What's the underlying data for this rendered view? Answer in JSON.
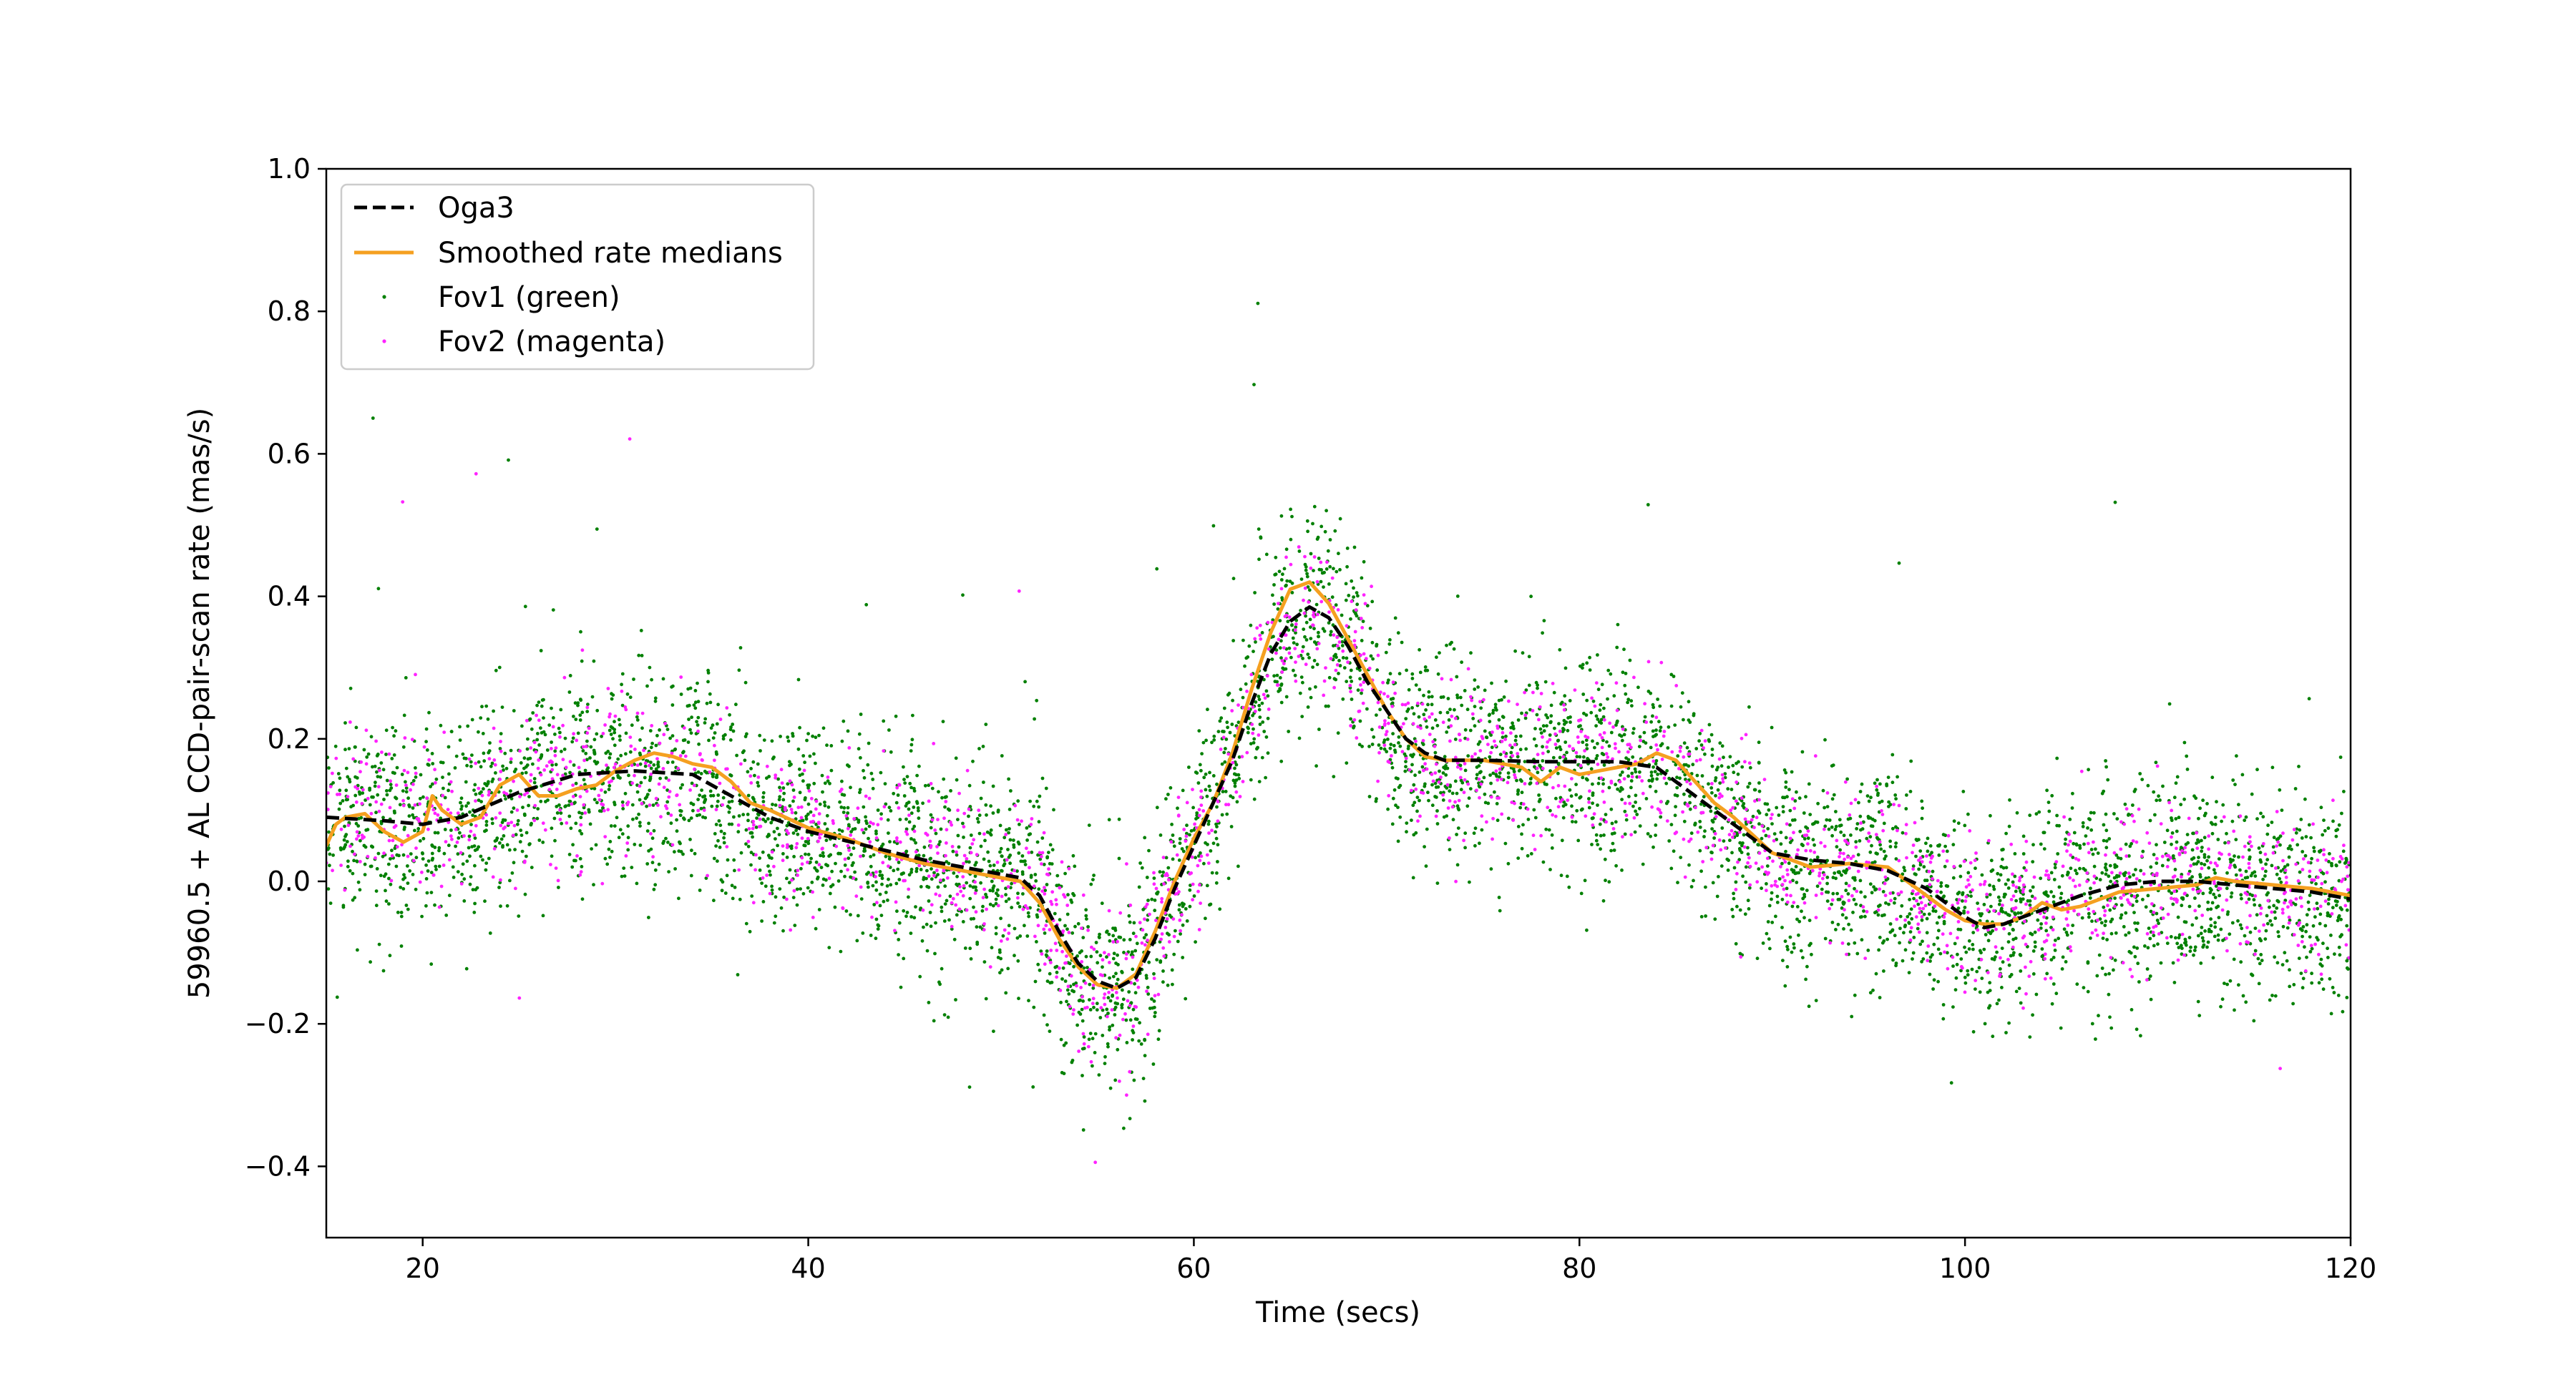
{
  "chart_data": {
    "type": "scatter",
    "title": "",
    "xlabel": "Time (secs)",
    "ylabel": "59960.5 + AL CCD-pair-scan rate (mas/s)",
    "xlim": [
      15,
      120
    ],
    "ylim": [
      -0.5,
      1.0
    ],
    "xticks": [
      20,
      40,
      60,
      80,
      100,
      120
    ],
    "yticks": [
      -0.4,
      -0.2,
      0.0,
      0.2,
      0.4,
      0.6,
      0.8,
      1.0
    ],
    "xtick_labels": [
      "20",
      "40",
      "60",
      "80",
      "100",
      "120"
    ],
    "ytick_labels": [
      "−0.4",
      "−0.2",
      "0.0",
      "0.2",
      "0.4",
      "0.6",
      "0.8",
      "1.0"
    ],
    "grid": false,
    "legend_position": "top-left",
    "series": [
      {
        "name": "Oga3",
        "kind": "line",
        "style": "dashed",
        "color": "#000000",
        "x": [
          15,
          18,
          20,
          22,
          25,
          28,
          31,
          34,
          36,
          38,
          40,
          43,
          46,
          49,
          51,
          52,
          53,
          54,
          55,
          56,
          57,
          58,
          59,
          60,
          61,
          62,
          63,
          64,
          65,
          66,
          67,
          68,
          69,
          70,
          71,
          72,
          73,
          75,
          78,
          80,
          82,
          84,
          85,
          86,
          87,
          88,
          89,
          90,
          92,
          94,
          96,
          98,
          100,
          101,
          102,
          104,
          106,
          108,
          110,
          112,
          114,
          116,
          118,
          120
        ],
        "y": [
          0.09,
          0.085,
          0.08,
          0.09,
          0.125,
          0.15,
          0.155,
          0.15,
          0.12,
          0.09,
          0.07,
          0.05,
          0.03,
          0.015,
          0.005,
          -0.02,
          -0.07,
          -0.115,
          -0.14,
          -0.15,
          -0.135,
          -0.08,
          -0.01,
          0.05,
          0.11,
          0.17,
          0.25,
          0.32,
          0.365,
          0.385,
          0.37,
          0.33,
          0.28,
          0.24,
          0.2,
          0.18,
          0.17,
          0.17,
          0.168,
          0.168,
          0.168,
          0.16,
          0.14,
          0.12,
          0.1,
          0.08,
          0.06,
          0.04,
          0.03,
          0.025,
          0.015,
          -0.01,
          -0.05,
          -0.065,
          -0.06,
          -0.04,
          -0.02,
          -0.005,
          0.0,
          0.0,
          -0.005,
          -0.01,
          -0.015,
          -0.025
        ]
      },
      {
        "name": "Smoothed rate medians",
        "kind": "line",
        "style": "solid",
        "color": "#f5a020",
        "x": [
          15,
          15.5,
          16,
          17,
          18,
          19,
          20,
          20.5,
          21,
          22,
          23,
          24,
          25,
          26,
          27,
          28,
          29,
          30,
          31,
          32,
          33,
          34,
          35,
          36,
          37,
          38,
          40,
          42,
          44,
          46,
          48,
          50,
          51,
          52,
          53,
          54,
          55,
          56,
          57,
          58,
          59,
          60,
          61,
          62,
          63,
          64,
          65,
          66,
          67,
          68,
          69,
          70,
          71,
          72,
          73,
          75,
          77,
          78,
          79,
          80,
          81,
          82,
          83,
          84,
          85,
          86,
          87,
          88,
          89,
          90,
          92,
          94,
          96,
          98,
          99,
          100,
          101,
          102,
          103,
          104,
          105,
          106,
          108,
          110,
          112,
          113,
          114,
          116,
          118,
          120
        ],
        "y": [
          0.05,
          0.08,
          0.09,
          0.095,
          0.07,
          0.055,
          0.07,
          0.12,
          0.1,
          0.08,
          0.09,
          0.135,
          0.15,
          0.12,
          0.12,
          0.13,
          0.135,
          0.155,
          0.17,
          0.18,
          0.175,
          0.165,
          0.16,
          0.14,
          0.11,
          0.1,
          0.075,
          0.06,
          0.04,
          0.025,
          0.015,
          0.005,
          0.0,
          -0.03,
          -0.08,
          -0.12,
          -0.145,
          -0.15,
          -0.13,
          -0.07,
          0.0,
          0.06,
          0.11,
          0.18,
          0.27,
          0.35,
          0.41,
          0.42,
          0.39,
          0.34,
          0.29,
          0.24,
          0.2,
          0.175,
          0.17,
          0.17,
          0.16,
          0.14,
          0.16,
          0.15,
          0.155,
          0.16,
          0.165,
          0.18,
          0.17,
          0.14,
          0.11,
          0.09,
          0.065,
          0.04,
          0.02,
          0.025,
          0.02,
          -0.02,
          -0.04,
          -0.055,
          -0.06,
          -0.06,
          -0.05,
          -0.03,
          -0.04,
          -0.035,
          -0.015,
          -0.01,
          -0.005,
          0.005,
          0.0,
          -0.005,
          -0.01,
          -0.02
        ]
      },
      {
        "name": "Fov1 (green)",
        "kind": "scatter",
        "color": "#008000"
      },
      {
        "name": "Fov2 (magenta)",
        "kind": "scatter",
        "color": "#ff22ff"
      }
    ]
  }
}
